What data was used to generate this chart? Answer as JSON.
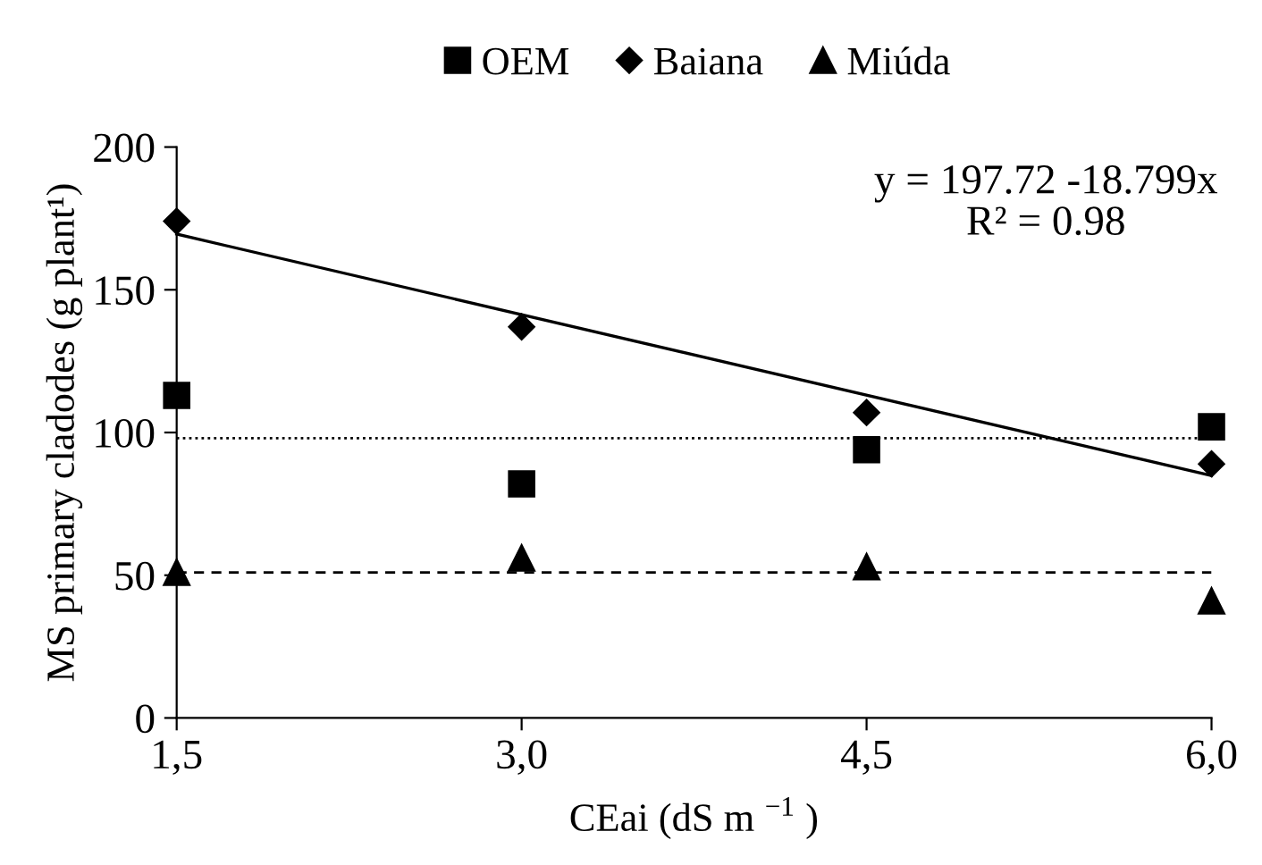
{
  "chart_data": {
    "type": "scatter",
    "xlabel": "CEai (dS m $^{−1}$ )",
    "ylabel": "MS primary cladodes (g plant¹)",
    "x": [
      1.5,
      3.0,
      4.5,
      6.0
    ],
    "series": [
      {
        "name": "OEM",
        "color": "#000000",
        "marker": "square",
        "values": [
          113,
          82,
          94,
          102
        ]
      },
      {
        "name": "Baiana",
        "color": "#000000",
        "marker": "diamond",
        "values": [
          174,
          137,
          107,
          89
        ]
      },
      {
        "name": "Miúda",
        "color": "#000000",
        "marker": "triangle",
        "values": [
          51,
          56,
          53,
          41
        ]
      },
      {
        "type": "line",
        "color": "#000000",
        "line_style": "solid",
        "marker": "none",
        "x": [
          1.5,
          6.0
        ],
        "values": [
          169.5,
          84.9
        ]
      }
    ],
    "ref_lines": [
      {
        "axis": "y",
        "value": 98,
        "color": "#000000",
        "line_style": "dotted"
      },
      {
        "axis": "y",
        "value": 51,
        "color": "#000000",
        "line_style": "dashed"
      }
    ],
    "annotations": [
      "y = 197.72 -18.799x\nR² = 0.98"
    ],
    "xlim": [
      1.5,
      6.0
    ],
    "xticks": [
      {
        "value": 1.5,
        "label": "1,5"
      },
      {
        "value": 3.0,
        "label": "3,0"
      },
      {
        "value": 4.5,
        "label": "4,5"
      },
      {
        "value": 6.0,
        "label": "6,0"
      }
    ],
    "ylim": [
      0,
      200
    ],
    "yticks": [
      0,
      50,
      100,
      150,
      200
    ],
    "grid": false,
    "legend": "top"
  }
}
